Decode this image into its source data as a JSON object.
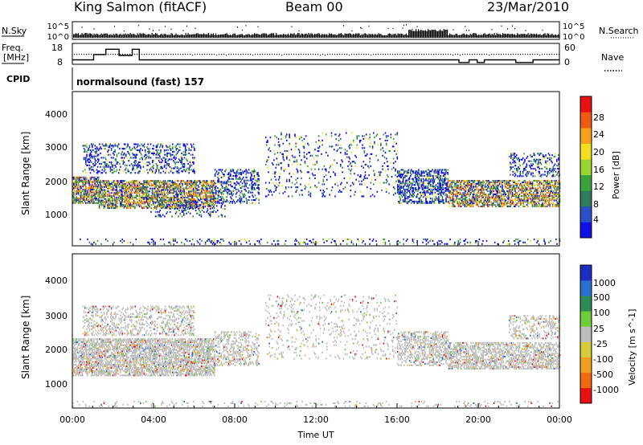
{
  "header": {
    "station": "King Salmon (fitACF)",
    "beam": "Beam 00",
    "date": "23/Mar/2010"
  },
  "noise_panel": {
    "left_label": "N.Sky",
    "right_label": "N.Search",
    "right_ticks": [
      "10^5",
      "10^0"
    ],
    "left_ticks": [
      "10^5",
      "10^0"
    ]
  },
  "freq_panel": {
    "left_label_1": "Freq.",
    "left_label_2": "[MHz]",
    "left_ticks": [
      "18",
      "8"
    ],
    "right_label": "Nave",
    "right_ticks": [
      "60",
      "0"
    ],
    "freq_steps": [
      [
        0.0,
        10.5
      ],
      [
        0.9,
        10.5
      ],
      [
        1.05,
        13.5
      ],
      [
        1.55,
        13.5
      ],
      [
        1.65,
        16.5
      ],
      [
        2.2,
        16.5
      ],
      [
        2.3,
        13.0
      ],
      [
        2.85,
        13.0
      ],
      [
        2.95,
        16.5
      ],
      [
        3.2,
        16.5
      ],
      [
        3.3,
        10.5
      ],
      [
        17.0,
        10.5
      ],
      [
        17.05,
        10.5
      ],
      [
        19.0,
        10.5
      ],
      [
        19.05,
        9.0
      ],
      [
        19.45,
        9.0
      ],
      [
        19.55,
        10.5
      ],
      [
        19.9,
        10.5
      ],
      [
        19.95,
        9.0
      ],
      [
        20.2,
        9.0
      ],
      [
        20.3,
        10.5
      ],
      [
        21.8,
        10.5
      ],
      [
        21.85,
        9.0
      ],
      [
        22.6,
        9.0
      ],
      [
        22.7,
        10.5
      ],
      [
        24.0,
        10.5
      ]
    ]
  },
  "cpid": {
    "label": "CPID",
    "value": "normalsound (fast) 157"
  },
  "chart_data": [
    {
      "type": "heatmap",
      "title": "Power",
      "xlabel": "",
      "ylabel": "Slant Range [km]",
      "xlim": [
        0,
        24
      ],
      "ylim": [
        0,
        4600
      ],
      "yticks": [
        "1000",
        "2000",
        "3000",
        "4000"
      ],
      "colorbar_label": "Power [dB]",
      "colorbar_ticks": [
        "4",
        "8",
        "12",
        "16",
        "20",
        "24",
        "28"
      ],
      "colorbar_colors": [
        "#1010e6",
        "#2a50c8",
        "#2d7d5e",
        "#3aa23a",
        "#9ad430",
        "#f2e020",
        "#f5a21a",
        "#f05a14",
        "#e81010"
      ]
    },
    {
      "type": "heatmap",
      "title": "Velocity",
      "xlabel": "Time UT",
      "ylabel": "Slant Range [km]",
      "xlim": [
        0,
        24
      ],
      "ylim": [
        0,
        4600
      ],
      "yticks": [
        "1000",
        "2000",
        "3000",
        "4000"
      ],
      "xticks": [
        "00:00",
        "04:00",
        "08:00",
        "12:00",
        "16:00",
        "20:00",
        "00:00"
      ],
      "colorbar_label": "Velocity [m s^-1]",
      "colorbar_ticks": [
        "1000",
        "500",
        "100",
        "25",
        "-25",
        "-100",
        "-500",
        "-1000"
      ],
      "colorbar_colors": [
        "#1a2fbf",
        "#2a6ecf",
        "#2e8b57",
        "#6fcf3a",
        "#bdbdbd",
        "#d6cc3a",
        "#f0a020",
        "#f06a14",
        "#e81010"
      ]
    }
  ]
}
